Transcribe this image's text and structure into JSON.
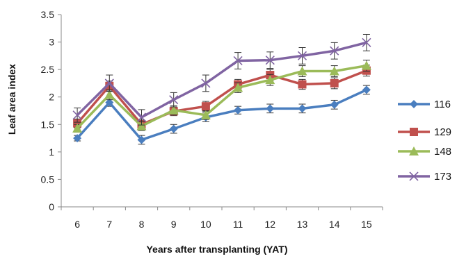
{
  "chart_data": {
    "type": "line",
    "title": "",
    "xlabel": "Years after transplanting (YAT)",
    "ylabel": "Leaf area index",
    "x": [
      6,
      7,
      8,
      9,
      10,
      11,
      12,
      13,
      14,
      15
    ],
    "ylim": [
      0,
      3.5
    ],
    "yticks": [
      "0",
      "0.5",
      "1",
      "1.5",
      "2",
      "2.5",
      "3",
      "3.5"
    ],
    "grid": false,
    "legend_position": "right",
    "series": [
      {
        "name": "116",
        "color": "#4a7ebf",
        "marker": "diamond",
        "values": [
          1.25,
          1.9,
          1.22,
          1.42,
          1.63,
          1.76,
          1.79,
          1.79,
          1.86,
          2.13
        ],
        "errors": [
          0.05,
          0.07,
          0.08,
          0.08,
          0.08,
          0.07,
          0.08,
          0.08,
          0.08,
          0.08
        ]
      },
      {
        "name": "129",
        "color": "#c0504d",
        "marker": "square",
        "values": [
          1.52,
          2.2,
          1.5,
          1.74,
          1.83,
          2.23,
          2.4,
          2.23,
          2.25,
          2.48
        ],
        "errors": [
          0.08,
          0.09,
          0.08,
          0.08,
          0.09,
          0.09,
          0.1,
          0.09,
          0.1,
          0.1
        ]
      },
      {
        "name": "148",
        "color": "#9bbb59",
        "marker": "triangle",
        "values": [
          1.43,
          2.04,
          1.47,
          1.76,
          1.67,
          2.17,
          2.31,
          2.47,
          2.47,
          2.57
        ],
        "errors": [
          0.07,
          0.09,
          0.08,
          0.08,
          0.08,
          0.09,
          0.1,
          0.1,
          0.1,
          0.1
        ]
      },
      {
        "name": "173",
        "color": "#8064a2",
        "marker": "x",
        "values": [
          1.67,
          2.25,
          1.63,
          1.95,
          2.25,
          2.66,
          2.67,
          2.75,
          2.84,
          2.99
        ],
        "errors": [
          0.13,
          0.15,
          0.14,
          0.13,
          0.15,
          0.15,
          0.15,
          0.15,
          0.15,
          0.15
        ]
      }
    ]
  }
}
